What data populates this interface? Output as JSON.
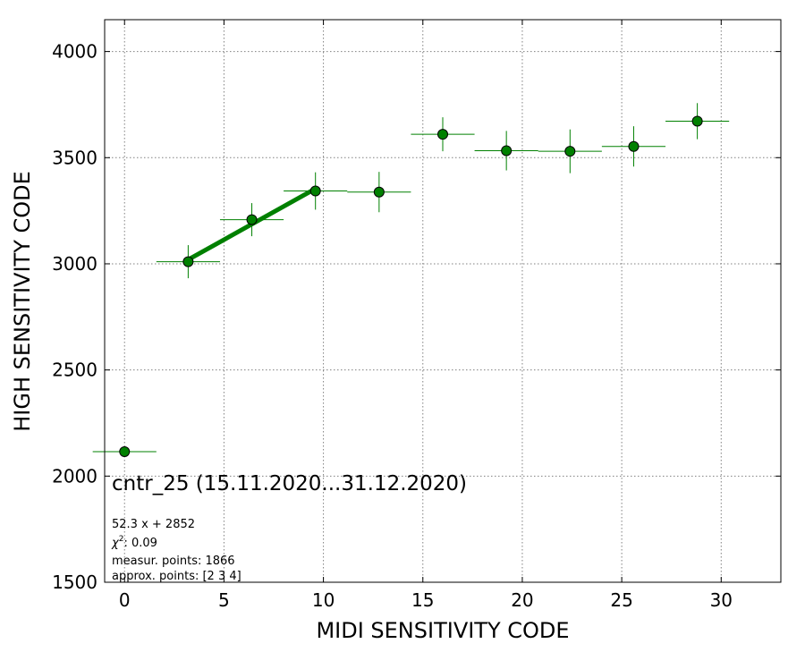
{
  "chart_data": {
    "type": "scatter",
    "xlabel": "MIDI SENSITIVITY CODE",
    "ylabel": "HIGH SENSITIVITY CODE",
    "xlim": [
      -1,
      33
    ],
    "ylim": [
      1500,
      4150
    ],
    "xticks": [
      0,
      5,
      10,
      15,
      20,
      25,
      30
    ],
    "yticks": [
      1500,
      2000,
      2500,
      3000,
      3500,
      4000
    ],
    "grid": true,
    "colors": {
      "marker": "#008000",
      "marker_edge": "#000000",
      "fit": "#008000"
    },
    "points": [
      {
        "x": 0,
        "y": 2115,
        "xerr": 1.6,
        "yerr": 0
      },
      {
        "x": 3.2,
        "y": 3010,
        "xerr": 1.6,
        "yerr": 78
      },
      {
        "x": 6.4,
        "y": 3208,
        "xerr": 1.6,
        "yerr": 78
      },
      {
        "x": 9.6,
        "y": 3343,
        "xerr": 1.6,
        "yerr": 88
      },
      {
        "x": 12.8,
        "y": 3338,
        "xerr": 1.6,
        "yerr": 95
      },
      {
        "x": 16.0,
        "y": 3610,
        "xerr": 1.6,
        "yerr": 80
      },
      {
        "x": 19.2,
        "y": 3533,
        "xerr": 1.6,
        "yerr": 93
      },
      {
        "x": 22.4,
        "y": 3530,
        "xerr": 1.6,
        "yerr": 103
      },
      {
        "x": 25.6,
        "y": 3553,
        "xerr": 1.6,
        "yerr": 95
      },
      {
        "x": 28.8,
        "y": 3672,
        "xerr": 1.6,
        "yerr": 85
      }
    ],
    "fit": {
      "slope": 52.3,
      "intercept": 2852,
      "x_range": [
        3.2,
        9.6
      ]
    },
    "annotations": {
      "title": "cntr_25 (15.11.2020...31.12.2020)",
      "equation": "52.3 x + 2852",
      "chi2_label": "χ",
      "chi2_sup": "2",
      "chi2_value": ": 0.09",
      "measur_points": "measur. points: 1866",
      "approx_points": "approx. points: [2 3 4]"
    }
  }
}
